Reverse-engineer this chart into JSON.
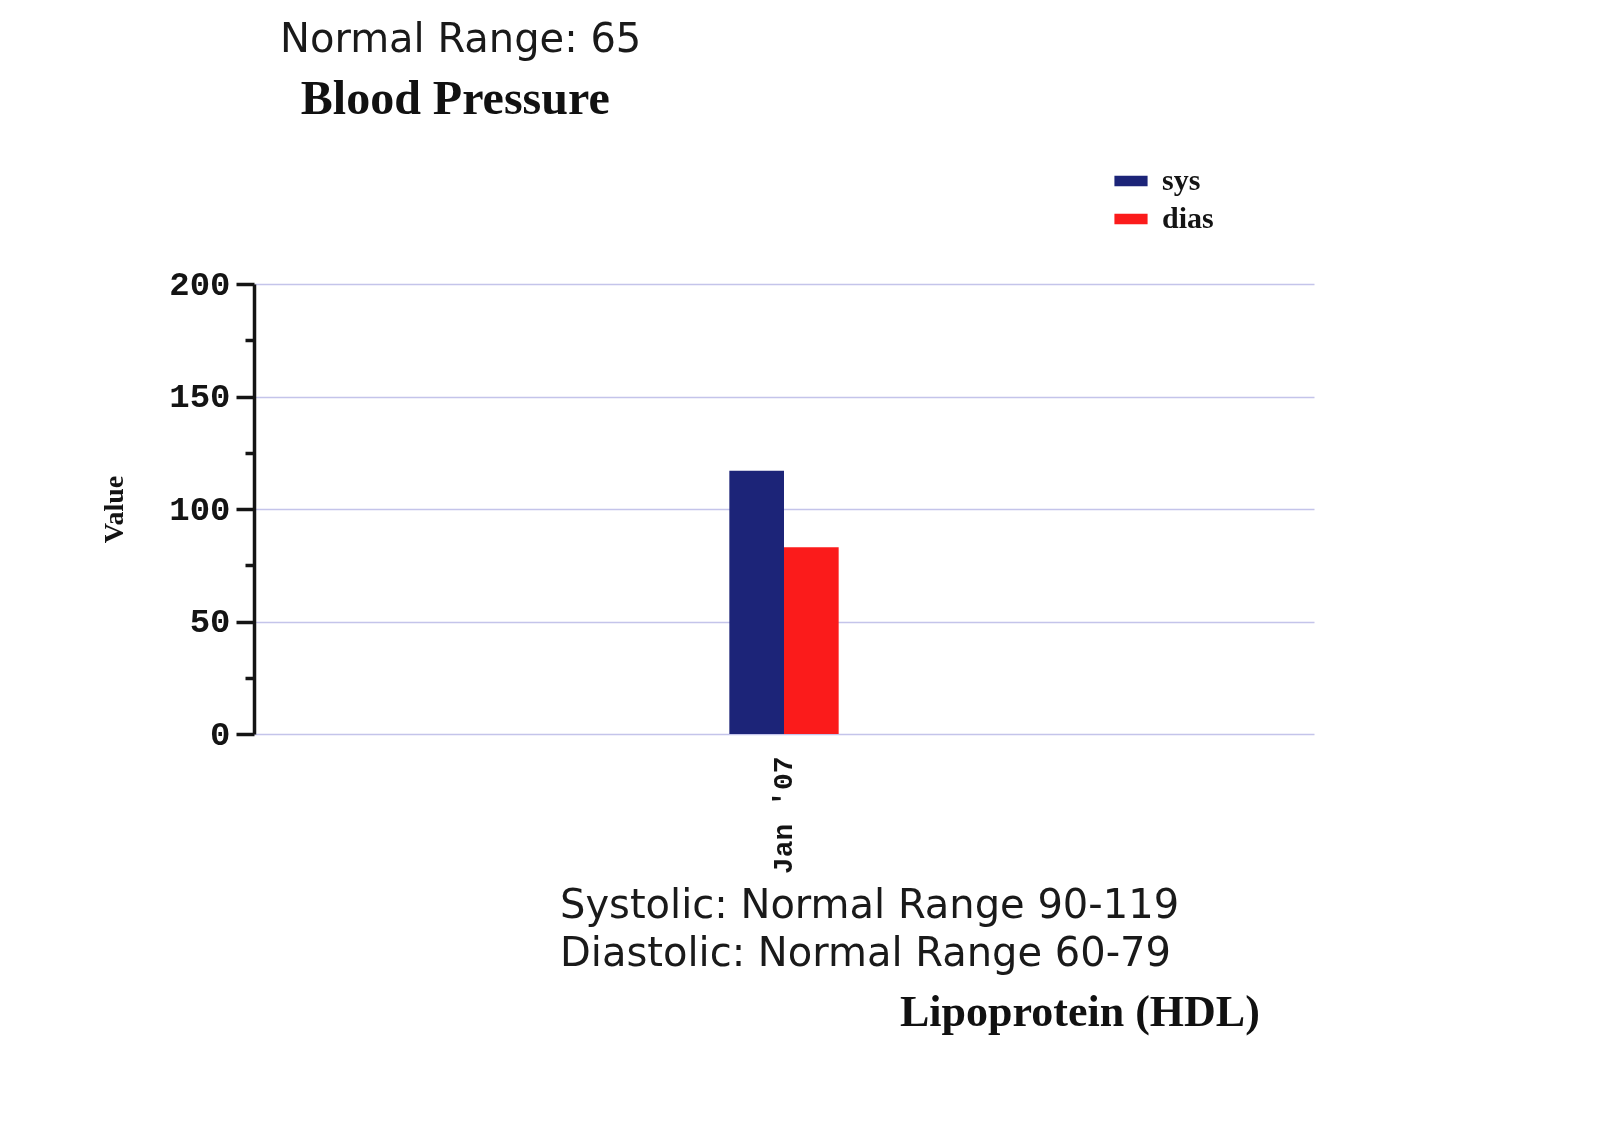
{
  "chart_data": {
    "type": "bar",
    "title": "Blood Pressure",
    "ylabel": "Value",
    "categories": [
      "Jan '07"
    ],
    "series": [
      {
        "name": "sys",
        "color": "#1c2478",
        "values": [
          117
        ]
      },
      {
        "name": "dias",
        "color": "#fb1b1b",
        "values": [
          83
        ]
      }
    ],
    "ylim": [
      0,
      200
    ],
    "yticks": [
      0,
      {
        "value": 25,
        "label": null
      },
      50,
      {
        "value": 75,
        "label": null
      },
      100,
      {
        "value": 125,
        "label": null
      },
      150,
      {
        "value": 175,
        "label": null
      },
      200
    ],
    "grid": "y",
    "legend": "top right",
    "annotations": [
      "Normal Range: 65",
      "Systolic: Normal Range 90-119",
      "Diastolic: Normal Range 60-79",
      "Lipoprotein (HDL)"
    ]
  }
}
